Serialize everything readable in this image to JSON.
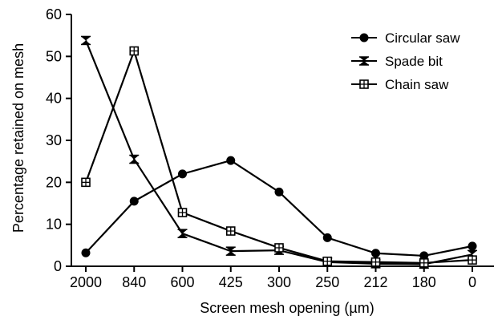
{
  "chart_data": {
    "type": "line",
    "title": "",
    "xlabel": "Screen mesh opening (µm)",
    "ylabel": "Percentage retained on mesh",
    "categories": [
      "2000",
      "840",
      "600",
      "425",
      "300",
      "250",
      "212",
      "180",
      "0"
    ],
    "ylim": [
      0,
      60
    ],
    "yticks": [
      0,
      10,
      20,
      30,
      40,
      50,
      60
    ],
    "grid": false,
    "legend_position": "top-right",
    "series": [
      {
        "name": "Circular saw",
        "marker": "circle",
        "values": [
          3.2,
          15.5,
          22.0,
          25.2,
          17.7,
          6.8,
          3.1,
          2.5,
          4.8
        ]
      },
      {
        "name": "Spade bit",
        "marker": "bowtie",
        "values": [
          53.8,
          25.5,
          7.8,
          3.6,
          3.8,
          1.0,
          0.6,
          0.5,
          2.8
        ]
      },
      {
        "name": "Chain saw",
        "marker": "square",
        "values": [
          20.0,
          51.3,
          12.8,
          8.4,
          4.4,
          1.2,
          1.0,
          0.8,
          1.5
        ]
      }
    ]
  }
}
